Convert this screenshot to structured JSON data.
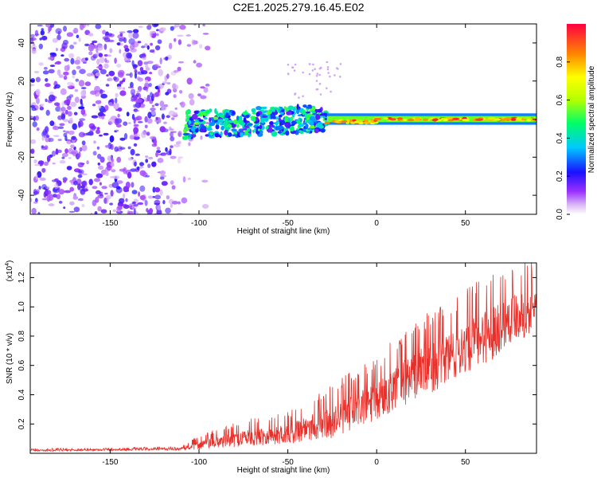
{
  "title": "C2E1.2025.279.16.45.E02",
  "chart_data": [
    {
      "type": "heatmap",
      "name": "spectrogram",
      "xlabel": "Height of straight line (km)",
      "ylabel": "Frequency (Hz)",
      "xlim": [
        -195,
        90
      ],
      "ylim": [
        -50,
        50
      ],
      "xticks": [
        -150,
        -100,
        -50,
        0,
        50
      ],
      "yticks": [
        -40,
        -20,
        0,
        20,
        40
      ],
      "colorbar": {
        "label": "Normalized spectral amplitude",
        "range": [
          0,
          1
        ],
        "ticks": [
          "0.0",
          "0.2",
          "0.4",
          "0.6",
          "0.8"
        ],
        "tick_values": [
          0,
          0.2,
          0.4,
          0.6,
          0.8
        ]
      },
      "regions": [
        {
          "x_range": [
            -195,
            -110
          ],
          "freq_range": [
            -50,
            50
          ],
          "amplitude": [
            0.05,
            0.2
          ],
          "description": "broadband noise"
        },
        {
          "x_range": [
            -108,
            -28
          ],
          "freq_range": [
            -8,
            10
          ],
          "amplitude": [
            0.15,
            0.55
          ],
          "description": "clustered signal"
        },
        {
          "x_range": [
            -28,
            90
          ],
          "freq_range": [
            -2,
            2
          ],
          "amplitude": [
            0.6,
            0.98
          ],
          "description": "narrow tone near 0 Hz"
        }
      ]
    },
    {
      "type": "line",
      "name": "snr",
      "xlabel": "Height of straight line (km)",
      "ylabel": "SNR (10 * v/v)",
      "scale_label_base": "(x10",
      "scale_label_exp": "4",
      "scale_label_end": ")",
      "xlim": [
        -195,
        90
      ],
      "ylim": [
        0,
        1.3
      ],
      "xticks": [
        -150,
        -100,
        -50,
        0,
        50
      ],
      "yticks": [
        0.2,
        0.4,
        0.6,
        0.8,
        1.0,
        1.2
      ],
      "ytick_labels": [
        "0.2",
        "0.4",
        "0.6",
        "0.8",
        "1.0",
        "1.2"
      ],
      "color": "#e8302a",
      "series": [
        {
          "name": "SNR trend",
          "x": [
            -195,
            -150,
            -110,
            -100,
            -75,
            -50,
            -40,
            -25,
            -10,
            0,
            10,
            25,
            40,
            55,
            65,
            75,
            90
          ],
          "y": [
            0.02,
            0.025,
            0.03,
            0.06,
            0.11,
            0.14,
            0.18,
            0.23,
            0.32,
            0.36,
            0.47,
            0.58,
            0.66,
            0.78,
            0.85,
            0.95,
            1.0
          ],
          "spread": [
            0.01,
            0.01,
            0.012,
            0.05,
            0.09,
            0.11,
            0.14,
            0.18,
            0.22,
            0.22,
            0.25,
            0.28,
            0.28,
            0.3,
            0.3,
            0.28,
            0.25
          ]
        }
      ]
    }
  ]
}
